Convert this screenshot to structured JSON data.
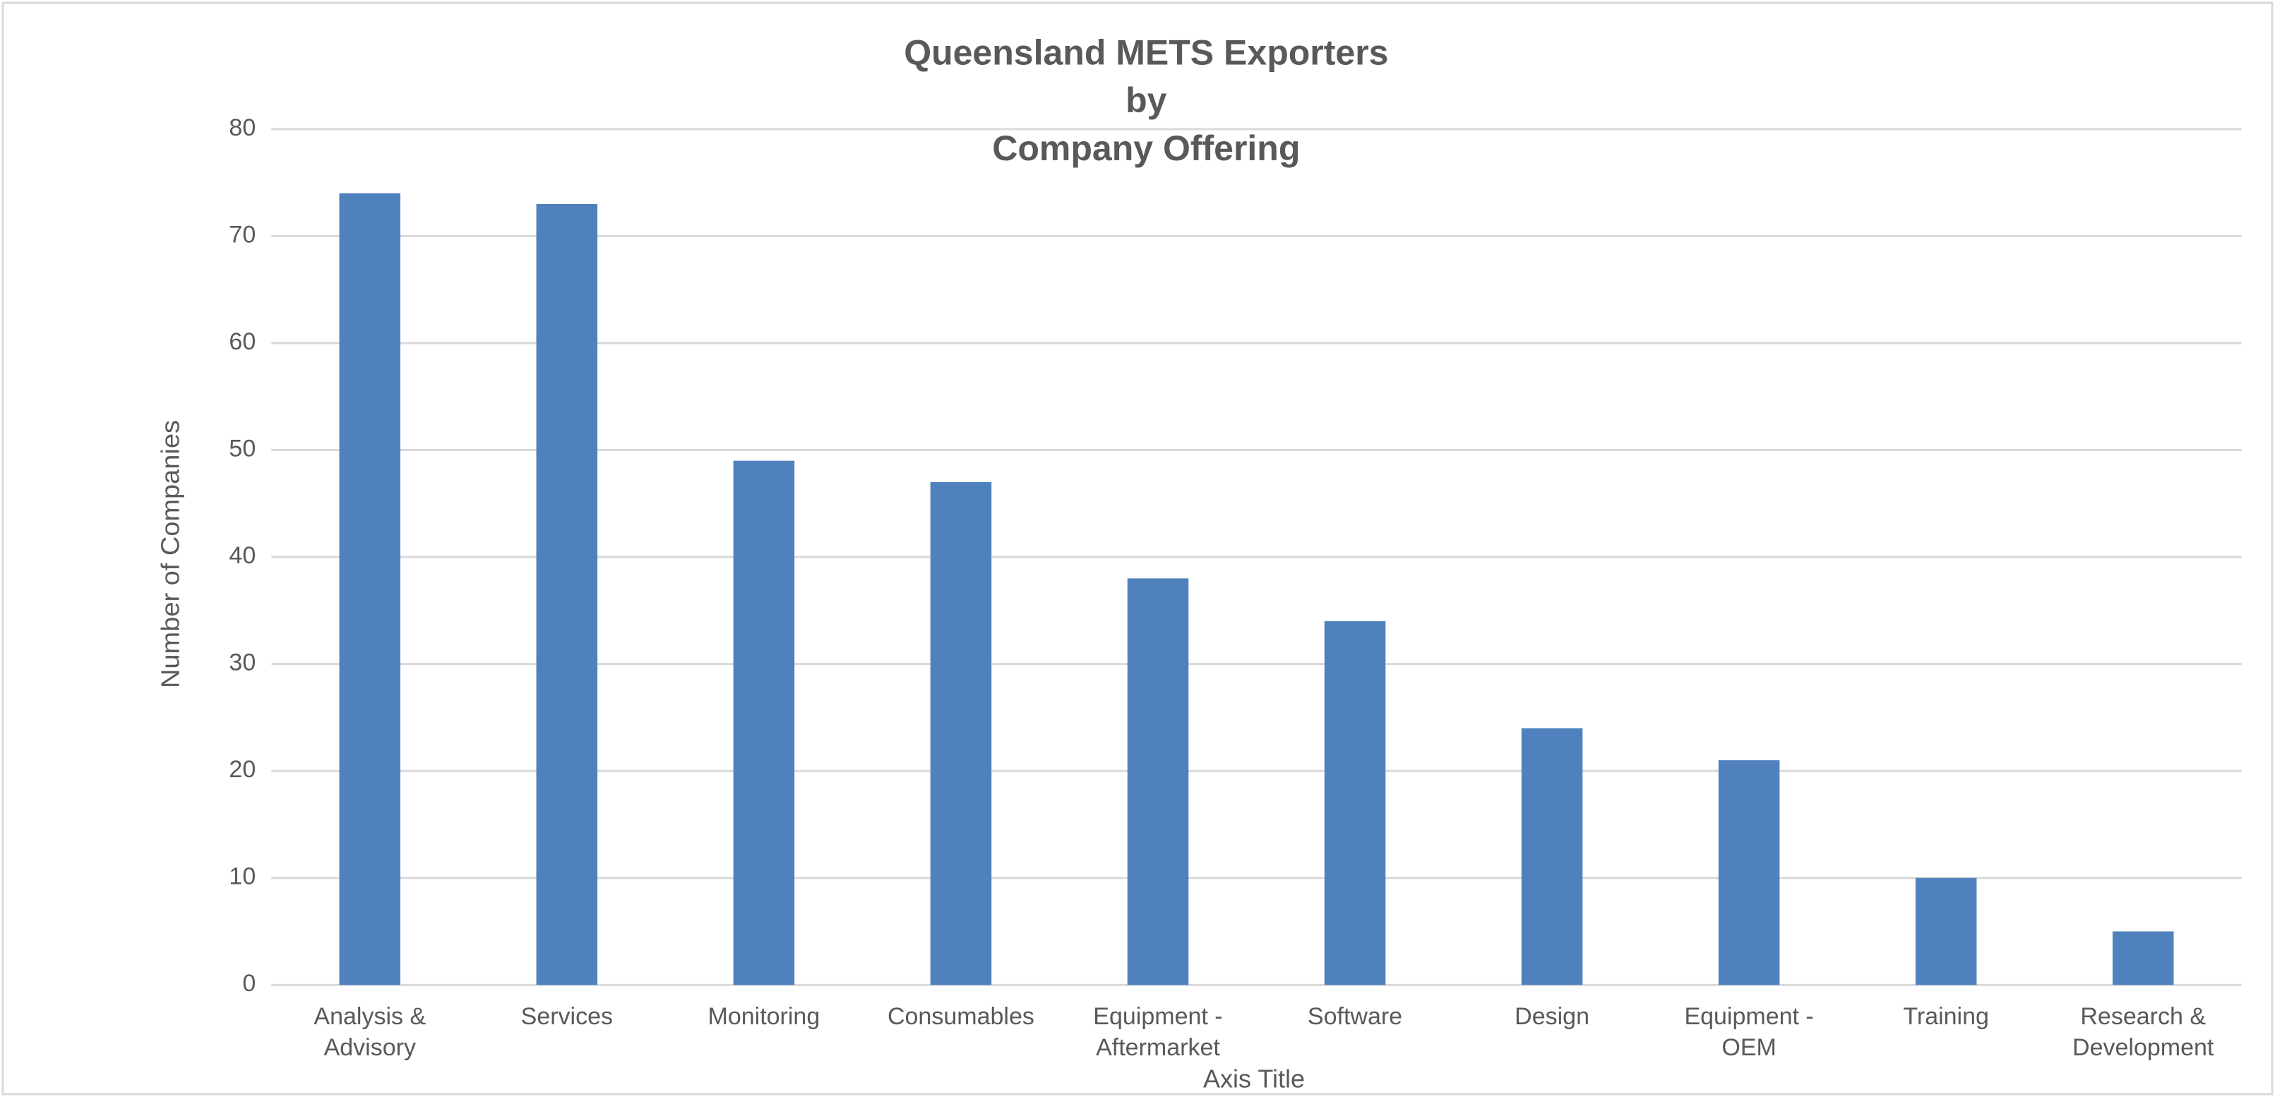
{
  "chart_data": {
    "type": "bar",
    "title": [
      "Queensland METS Exporters",
      "by",
      "Company Offering"
    ],
    "ylabel": "Number of Companies",
    "xlabel": "Axis Title",
    "categories": [
      "Analysis & Advisory",
      "Services",
      "Monitoring",
      "Consumables",
      "Equipment - Aftermarket",
      "Software",
      "Design",
      "Equipment - OEM",
      "Training",
      "Research & Development"
    ],
    "values": [
      74,
      73,
      49,
      47,
      38,
      34,
      24,
      21,
      10,
      5
    ],
    "color": "#4f81bd",
    "ylim": [
      0,
      80
    ],
    "yticks": [
      0,
      10,
      20,
      30,
      40,
      50,
      60,
      70,
      80
    ],
    "grid": true
  }
}
